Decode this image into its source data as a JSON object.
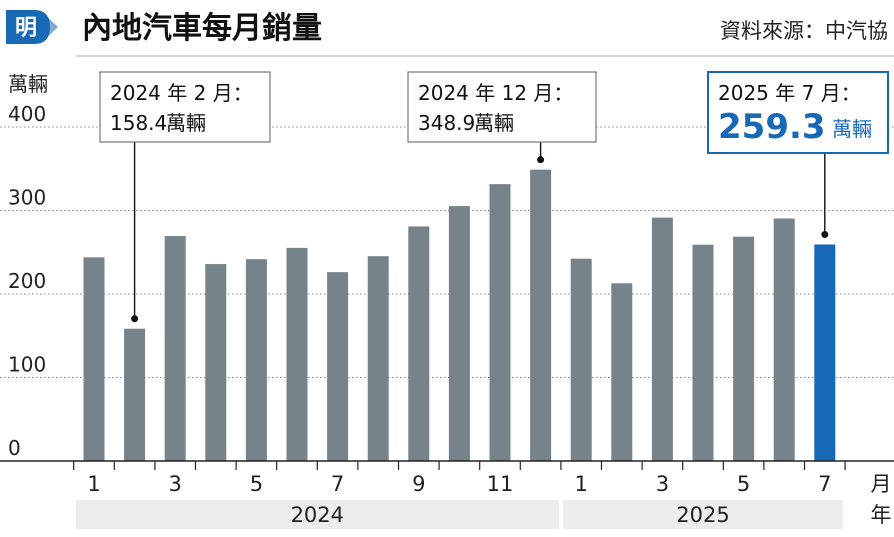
{
  "header": {
    "logo_char": "明",
    "title": "內地汽車每月銷量",
    "source": "資料來源：中汽協"
  },
  "chart_data": {
    "type": "bar",
    "title": "內地汽車每月銷量",
    "ylabel": "萬輛",
    "ylim": [
      0,
      400
    ],
    "yticks": [
      0,
      100,
      200,
      300,
      400
    ],
    "grid": true,
    "x_axis_month_label": "月",
    "x_axis_year_label": "年",
    "categories": [
      "2024-01",
      "2024-02",
      "2024-03",
      "2024-04",
      "2024-05",
      "2024-06",
      "2024-07",
      "2024-08",
      "2024-09",
      "2024-10",
      "2024-11",
      "2024-12",
      "2025-01",
      "2025-02",
      "2025-03",
      "2025-04",
      "2025-05",
      "2025-06",
      "2025-07"
    ],
    "month_labels": [
      "1",
      "",
      "3",
      "",
      "5",
      "",
      "7",
      "",
      "9",
      "",
      "11",
      "",
      "1",
      "",
      "3",
      "",
      "5",
      "",
      "7"
    ],
    "years": [
      {
        "label": "2024",
        "from": 0,
        "to": 11
      },
      {
        "label": "2025",
        "from": 12,
        "to": 18
      }
    ],
    "values": [
      243.9,
      158.4,
      269.4,
      235.9,
      241.7,
      255.2,
      226.2,
      245.3,
      280.9,
      305.3,
      331.6,
      348.9,
      242.3,
      212.8,
      291.5,
      259.0,
      268.6,
      290.4,
      259.3
    ],
    "highlight_index": 18,
    "colors": {
      "bar": "#77838a",
      "highlight": "#1769b5",
      "callout_border": "#777777",
      "highlight_border": "#1769b5"
    },
    "annotations": [
      {
        "index": 1,
        "line1": "2024 年 2 月：",
        "value": "158.4",
        "unit": "萬輛"
      },
      {
        "index": 11,
        "line1": "2024 年 12 月：",
        "value": "348.9",
        "unit": "萬輛"
      },
      {
        "index": 18,
        "line1": "2025 年 7 月：",
        "value": "259.3",
        "unit": "萬輛",
        "highlight": true
      }
    ]
  }
}
